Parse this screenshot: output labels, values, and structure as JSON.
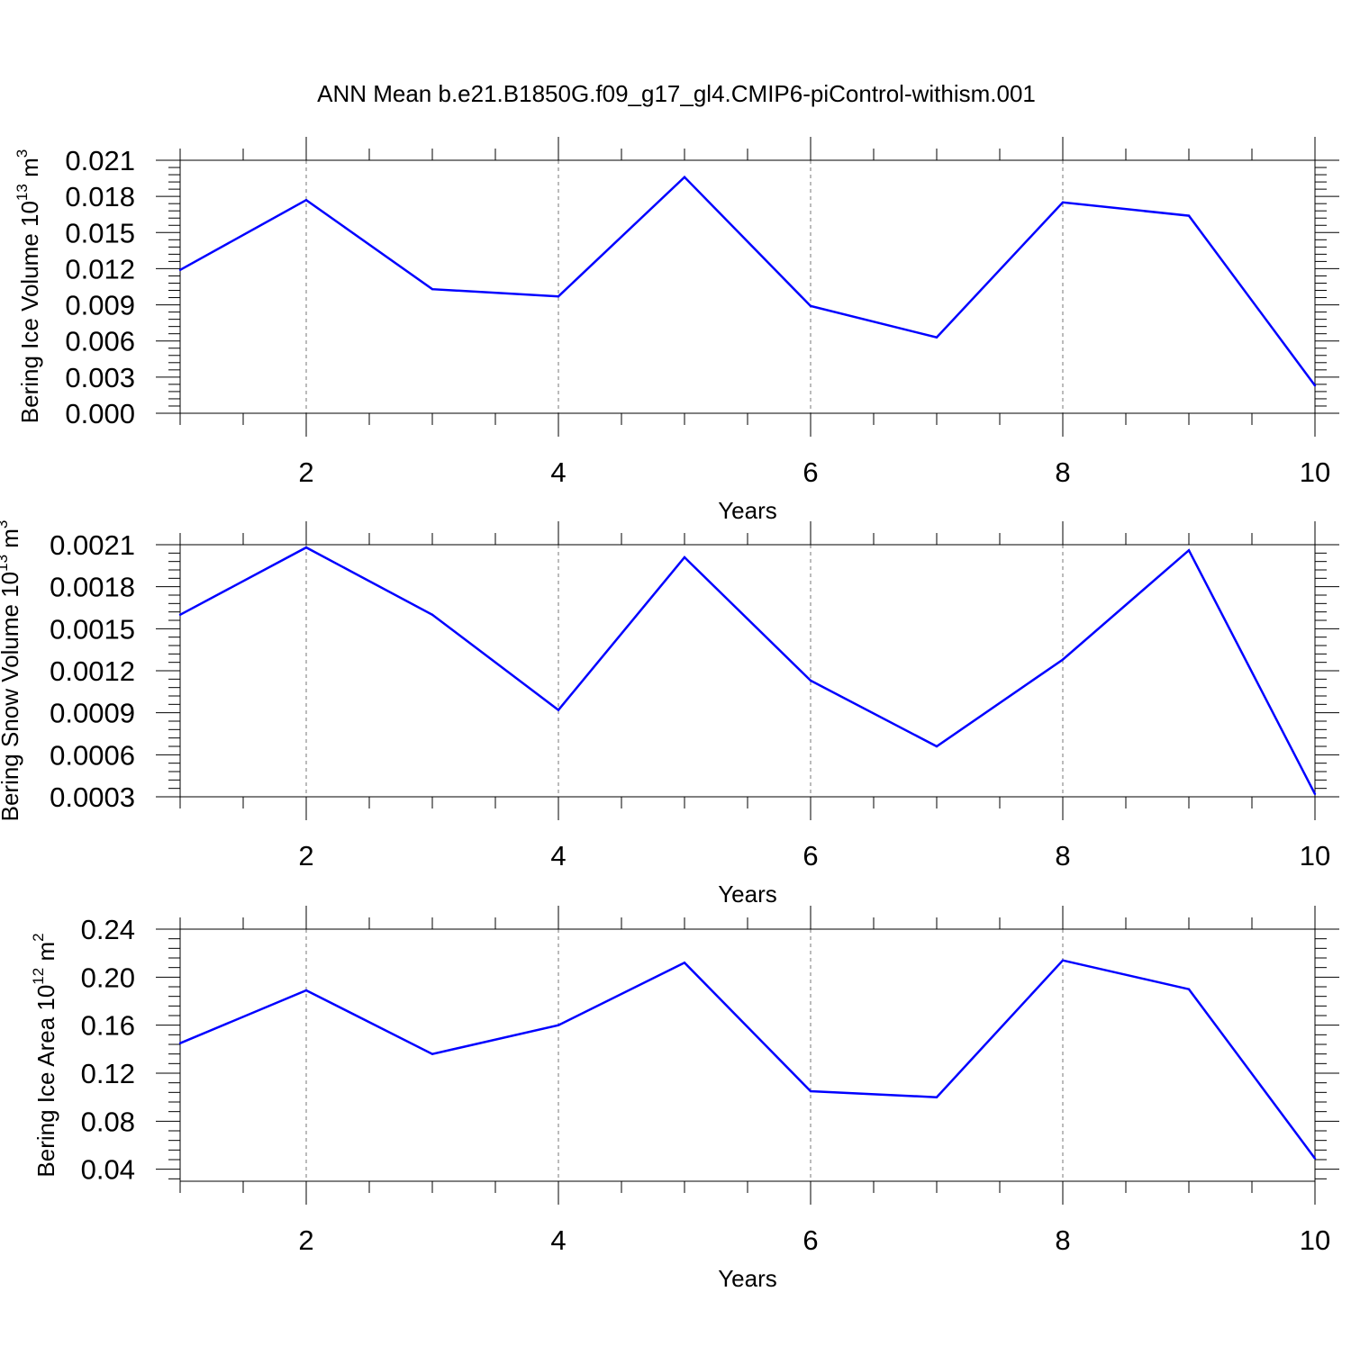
{
  "title": "ANN Mean b.e21.B1850G.f09_g17_gl4.CMIP6-piControl-withism.001",
  "chart_data": [
    {
      "type": "line",
      "xlabel": "Years",
      "ylabel": {
        "prefix": "Bering Ice Volume 10",
        "exponent": "13",
        "unit": "m",
        "unit_exponent": "3"
      },
      "xlim": [
        1,
        10
      ],
      "ylim": [
        0,
        0.021
      ],
      "x_ticks": [
        2,
        4,
        6,
        8,
        10
      ],
      "x_tick_labels": [
        "2",
        "4",
        "6",
        "8",
        "10"
      ],
      "y_ticks": [
        0,
        0.003,
        0.006,
        0.009,
        0.012,
        0.015,
        0.018,
        0.021
      ],
      "y_tick_labels": [
        "0.000",
        "0.003",
        "0.006",
        "0.009",
        "0.012",
        "0.015",
        "0.018",
        "0.021"
      ],
      "grid": "vertical dashed at major x ticks",
      "series": [
        {
          "x": [
            1,
            2,
            3,
            4,
            5,
            6,
            7,
            8,
            9,
            10
          ],
          "values": [
            0.0119,
            0.0177,
            0.0103,
            0.0097,
            0.0196,
            0.0089,
            0.0063,
            0.0175,
            0.0164,
            0.0023
          ],
          "color": "#0000ff"
        }
      ]
    },
    {
      "type": "line",
      "xlabel": "Years",
      "ylabel": {
        "prefix": "Bering Snow Volume 10",
        "exponent": "13",
        "unit": "m",
        "unit_exponent": "3"
      },
      "xlim": [
        1,
        10
      ],
      "ylim": [
        0.0003,
        0.0021
      ],
      "x_ticks": [
        2,
        4,
        6,
        8,
        10
      ],
      "x_tick_labels": [
        "2",
        "4",
        "6",
        "8",
        "10"
      ],
      "y_ticks": [
        0.0003,
        0.0006,
        0.0009,
        0.0012,
        0.0015,
        0.0018,
        0.0021
      ],
      "y_tick_labels": [
        "0.0003",
        "0.0006",
        "0.0009",
        "0.0012",
        "0.0015",
        "0.0018",
        "0.0021"
      ],
      "grid": "vertical dashed at major x ticks",
      "series": [
        {
          "x": [
            1,
            2,
            3,
            4,
            5,
            6,
            7,
            8,
            9,
            10
          ],
          "values": [
            0.0016,
            0.00208,
            0.0016,
            0.00092,
            0.00201,
            0.00113,
            0.00066,
            0.00128,
            0.00206,
            0.00032
          ],
          "color": "#0000ff"
        }
      ]
    },
    {
      "type": "line",
      "xlabel": "Years",
      "ylabel": {
        "prefix": "Bering Ice Area 10",
        "exponent": "12",
        "unit": "m",
        "unit_exponent": "2"
      },
      "xlim": [
        1,
        10
      ],
      "ylim": [
        0.03,
        0.24
      ],
      "x_ticks": [
        2,
        4,
        6,
        8,
        10
      ],
      "x_tick_labels": [
        "2",
        "4",
        "6",
        "8",
        "10"
      ],
      "y_ticks": [
        0.04,
        0.08,
        0.12,
        0.16,
        0.2,
        0.24
      ],
      "y_tick_labels": [
        "0.04",
        "0.08",
        "0.12",
        "0.16",
        "0.20",
        "0.24"
      ],
      "grid": "vertical dashed at major x ticks",
      "series": [
        {
          "x": [
            1,
            2,
            3,
            4,
            5,
            6,
            7,
            8,
            9,
            10
          ],
          "values": [
            0.145,
            0.189,
            0.136,
            0.16,
            0.212,
            0.105,
            0.1,
            0.214,
            0.19,
            0.049
          ],
          "color": "#0000ff"
        }
      ]
    }
  ]
}
